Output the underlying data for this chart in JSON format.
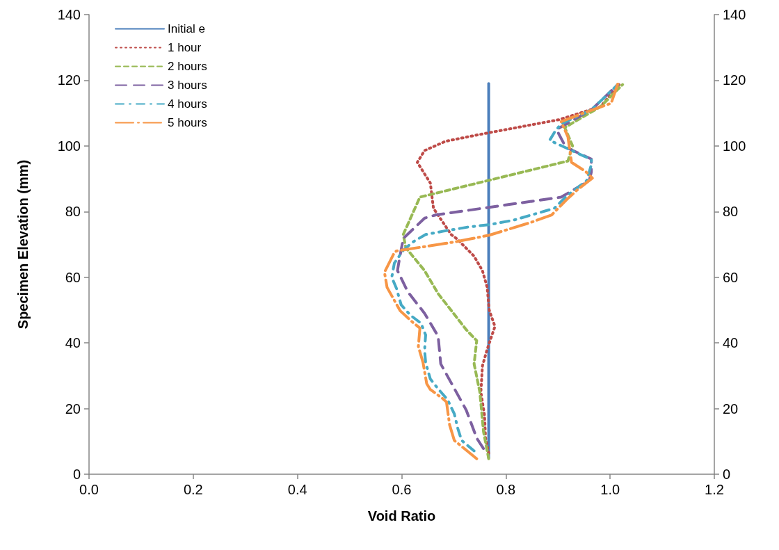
{
  "chart_data": {
    "type": "line",
    "xlabel": "Void Ratio",
    "ylabel": "Specimen Elevation (mm)",
    "xlim": [
      0,
      1.2
    ],
    "xticks": [
      {
        "value": 0,
        "label": "0.0"
      },
      {
        "value": 0.2,
        "label": "0.2"
      },
      {
        "value": 0.4,
        "label": "0.4"
      },
      {
        "value": 0.6,
        "label": "0.6"
      },
      {
        "value": 0.8,
        "label": "0.8"
      },
      {
        "value": 1,
        "label": "1.0"
      },
      {
        "value": 1.2,
        "label": "1.2"
      }
    ],
    "ylim": [
      0,
      140
    ],
    "yticks": [
      0,
      20,
      40,
      60,
      80,
      100,
      120,
      140
    ],
    "y2lim": [
      0,
      140
    ],
    "y2ticks": [
      0,
      20,
      40,
      60,
      80,
      100,
      120,
      140
    ],
    "grid": false,
    "legend": "top left",
    "marker": "none",
    "series": [
      {
        "name": "Initial e",
        "color": "#4a7ebb",
        "line_style": "solid",
        "x": [
          0.767,
          0.767
        ],
        "values": [
          5,
          119
        ]
      },
      {
        "name": "1 hour",
        "color": "#be4b48",
        "line_style": "dotted",
        "x": [
          0.767,
          0.761,
          0.759,
          0.752,
          0.755,
          0.764,
          0.779,
          0.768,
          0.764,
          0.755,
          0.739,
          0.706,
          0.695,
          0.661,
          0.655,
          0.63,
          0.644,
          0.684,
          0.75,
          0.902,
          0.982,
          1.017
        ],
        "values": [
          6.4,
          11,
          18,
          25,
          33,
          38,
          45,
          50,
          57,
          62,
          66.4,
          71.7,
          73,
          81,
          88.7,
          95,
          98.6,
          101.4,
          103.5,
          108,
          112,
          118.7
        ]
      },
      {
        "name": "2 hours",
        "color": "#98b954",
        "line_style": "dashed",
        "x": [
          0.767,
          0.757,
          0.75,
          0.739,
          0.744,
          0.724,
          0.67,
          0.644,
          0.608,
          0.603,
          0.635,
          0.919,
          0.928,
          0.913,
          0.982,
          1.024
        ],
        "values": [
          4.7,
          13,
          25,
          33.6,
          40.7,
          44,
          55,
          62,
          69,
          73,
          84.4,
          95.4,
          100,
          105.6,
          112,
          118.7
        ]
      },
      {
        "name": "3 hours",
        "color": "#7d60a0",
        "line_style": "dashed",
        "x": [
          0.757,
          0.744,
          0.724,
          0.675,
          0.67,
          0.644,
          0.612,
          0.592,
          0.594,
          0.603,
          0.644,
          0.666,
          0.906,
          0.96,
          0.964,
          0.964,
          0.915,
          0.897,
          0.964,
          1.015
        ],
        "values": [
          7.8,
          11,
          19.5,
          33.6,
          42,
          49,
          55.5,
          62,
          64,
          71.8,
          78,
          79,
          84.4,
          89.4,
          92,
          96,
          99.6,
          105,
          111,
          118.7
        ]
      },
      {
        "name": "4 hours",
        "color": "#46aac5",
        "line_style": "dashed",
        "x": [
          0.739,
          0.715,
          0.708,
          0.701,
          0.688,
          0.67,
          0.655,
          0.646,
          0.644,
          0.646,
          0.637,
          0.617,
          0.599,
          0.59,
          0.581,
          0.586,
          0.603,
          0.621,
          0.646,
          0.679,
          0.728,
          0.768,
          0.815,
          0.893,
          0.917,
          0.955,
          0.964,
          0.964,
          0.951,
          0.884,
          0.895,
          0.906,
          0.964,
          1.015
        ],
        "values": [
          7.1,
          10.3,
          13.8,
          18.4,
          22.7,
          26,
          29,
          34,
          37.8,
          42.4,
          46,
          48.4,
          51.6,
          56.6,
          60,
          64.3,
          68.2,
          70.7,
          73,
          74,
          75.3,
          76,
          77.4,
          81,
          84.8,
          89.4,
          94.3,
          95.9,
          96.8,
          101.7,
          104.6,
          106.7,
          111,
          118.7
        ]
      },
      {
        "name": "5 hours",
        "color": "#f79646",
        "line_style": "dashed",
        "x": [
          0.744,
          0.701,
          0.692,
          0.686,
          0.679,
          0.655,
          0.648,
          0.641,
          0.632,
          0.635,
          0.621,
          0.597,
          0.572,
          0.567,
          0.586,
          0.59,
          0.684,
          0.71,
          0.768,
          0.848,
          0.888,
          0.917,
          0.937,
          0.966,
          0.953,
          0.926,
          0.919,
          0.906,
          0.959,
          1.002,
          1.015
        ],
        "values": [
          4.7,
          10.3,
          15,
          22,
          23,
          25.8,
          27.6,
          34,
          38.9,
          44.5,
          46.3,
          49.8,
          56.9,
          61.5,
          67.5,
          68,
          70.3,
          71,
          72.8,
          76.7,
          79,
          83.7,
          86.6,
          90.2,
          92.2,
          95,
          102.8,
          107.4,
          110.6,
          113,
          119
        ]
      }
    ]
  }
}
